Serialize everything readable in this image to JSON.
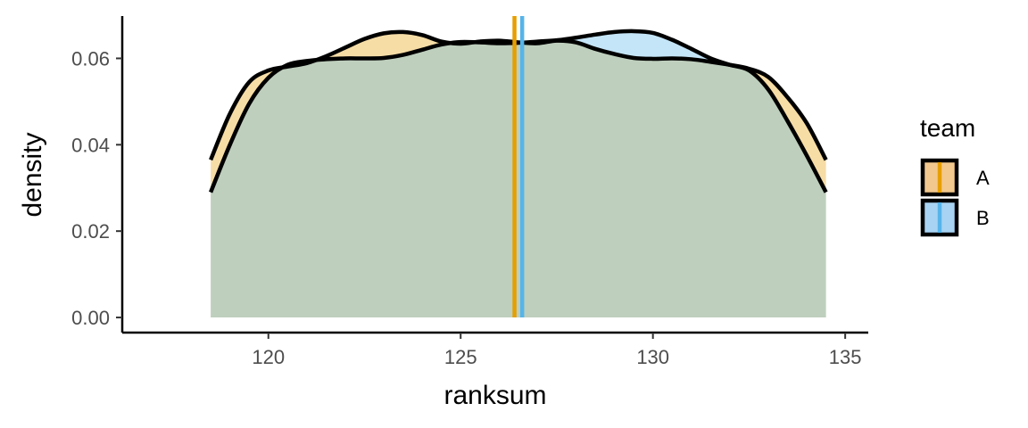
{
  "chart_data": {
    "type": "area",
    "xlabel": "ranksum",
    "ylabel": "density",
    "xlim": [
      116.2,
      135.6
    ],
    "ylim": [
      -0.0035,
      0.0698
    ],
    "x_ticks": [
      120,
      125,
      130,
      135
    ],
    "x_tick_labels": [
      "120",
      "125",
      "130",
      "135"
    ],
    "y_ticks": [
      0.0,
      0.02,
      0.04,
      0.06
    ],
    "y_tick_labels": [
      "0.00",
      "0.02",
      "0.04",
      "0.06"
    ],
    "grid": false,
    "legend": {
      "title": "team",
      "placement": "right",
      "entries": [
        {
          "label": "A",
          "fill": "#f2c88e",
          "line": "#e69f00"
        },
        {
          "label": "B",
          "fill": "#a9d3f2",
          "line": "#56b4e9"
        }
      ]
    },
    "series": [
      {
        "name": "A",
        "fill": "#e69f00",
        "mean_line_color": "#e69f00",
        "mean": 126.4,
        "x": [
          118.5,
          119.0,
          119.5,
          120.0,
          120.5,
          121.0,
          121.5,
          122.0,
          122.5,
          123.0,
          123.5,
          124.0,
          124.5,
          125.0,
          125.5,
          126.0,
          126.5,
          127.0,
          127.5,
          128.0,
          128.5,
          129.0,
          129.5,
          130.0,
          130.5,
          131.0,
          131.5,
          132.0,
          132.5,
          133.0,
          133.5,
          134.0,
          134.5
        ],
        "values": [
          0.0365,
          0.0472,
          0.0545,
          0.0572,
          0.0581,
          0.0589,
          0.0605,
          0.0625,
          0.0645,
          0.0658,
          0.0661,
          0.0654,
          0.0639,
          0.0634,
          0.0639,
          0.0641,
          0.0637,
          0.0635,
          0.0641,
          0.0637,
          0.0622,
          0.061,
          0.0601,
          0.0599,
          0.06,
          0.0598,
          0.0592,
          0.0585,
          0.0576,
          0.0557,
          0.051,
          0.045,
          0.0365
        ]
      },
      {
        "name": "B",
        "fill": "#56b4e9",
        "mean_line_color": "#56b4e9",
        "mean": 126.6,
        "x": [
          118.5,
          119.0,
          119.5,
          120.0,
          120.5,
          121.0,
          121.5,
          122.0,
          122.5,
          123.0,
          123.5,
          124.0,
          124.5,
          125.0,
          125.5,
          126.0,
          126.5,
          127.0,
          127.5,
          128.0,
          128.5,
          129.0,
          129.5,
          130.0,
          130.5,
          131.0,
          131.5,
          132.0,
          132.5,
          133.0,
          133.5,
          134.0,
          134.5
        ],
        "values": [
          0.029,
          0.04,
          0.0495,
          0.0555,
          0.0585,
          0.0594,
          0.0598,
          0.06,
          0.06,
          0.0601,
          0.0608,
          0.062,
          0.0632,
          0.0638,
          0.0637,
          0.0635,
          0.0636,
          0.0639,
          0.0642,
          0.0648,
          0.0655,
          0.0661,
          0.0663,
          0.0659,
          0.0643,
          0.0622,
          0.06,
          0.0585,
          0.0572,
          0.0528,
          0.0455,
          0.0375,
          0.029
        ]
      }
    ]
  }
}
